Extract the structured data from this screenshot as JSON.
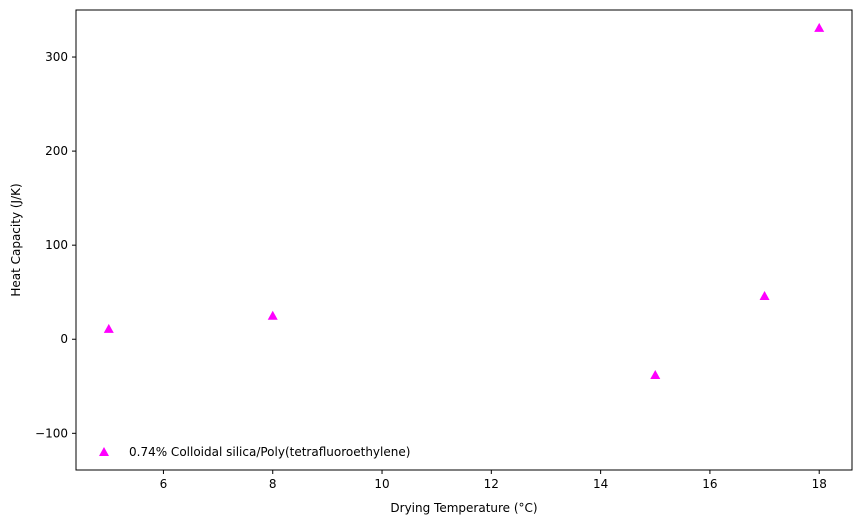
{
  "chart_data": {
    "type": "scatter",
    "title": "",
    "xlabel": "Drying Temperature (°C)",
    "ylabel": "Heat Capacity (J/K)",
    "xlim": [
      4.4,
      18.6
    ],
    "ylim": [
      -139,
      350
    ],
    "xticks": [
      6,
      8,
      10,
      12,
      14,
      16,
      18
    ],
    "yticks": [
      -100,
      0,
      100,
      200,
      300
    ],
    "xtick_labels": [
      "6",
      "8",
      "10",
      "12",
      "14",
      "16",
      "18"
    ],
    "ytick_labels": [
      "−100",
      "0",
      "100",
      "200",
      "300"
    ],
    "grid": false,
    "legend_position": "lower-left",
    "series": [
      {
        "name": "0.74% Colloidal silica/Poly(tetrafluoroethylene)",
        "color": "#ff00ff",
        "marker": "triangle-up",
        "x": [
          5,
          8,
          15,
          17,
          18
        ],
        "y": [
          11,
          25,
          -38,
          46,
          331
        ]
      }
    ]
  }
}
